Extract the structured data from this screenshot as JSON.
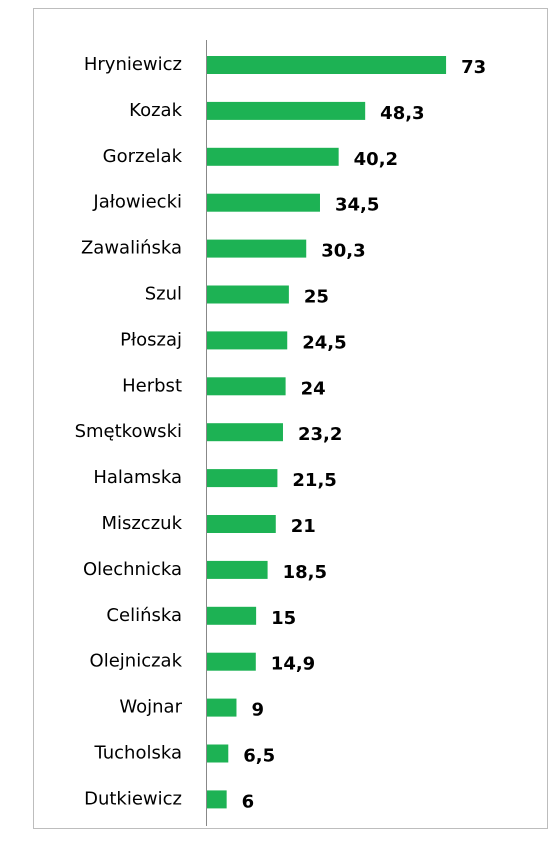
{
  "chart_data": {
    "type": "bar",
    "orientation": "horizontal",
    "categories": [
      "Hryniewicz",
      "Kozak",
      "Gorzelak",
      "Jałowiecki",
      "Zawalińska",
      "Szul",
      "Płoszaj",
      "Herbst",
      "Smętkowski",
      "Halamska",
      "Miszczuk",
      "Olechnicka",
      "Celińska",
      "Olejniczak",
      "Wojnar",
      "Tucholska",
      "Dutkiewicz"
    ],
    "values": [
      73,
      48.3,
      40.2,
      34.5,
      30.3,
      25,
      24.5,
      24,
      23.2,
      21.5,
      21,
      18.5,
      15,
      14.9,
      9,
      6.5,
      6
    ],
    "value_labels": [
      "73",
      "48,3",
      "40,2",
      "34,5",
      "30,3",
      "25",
      "24,5",
      "24",
      "23,2",
      "21,5",
      "21",
      "18,5",
      "15",
      "14,9",
      "9",
      "6,5",
      "6"
    ],
    "color": "#1db254",
    "xlim": [
      0,
      80
    ]
  }
}
